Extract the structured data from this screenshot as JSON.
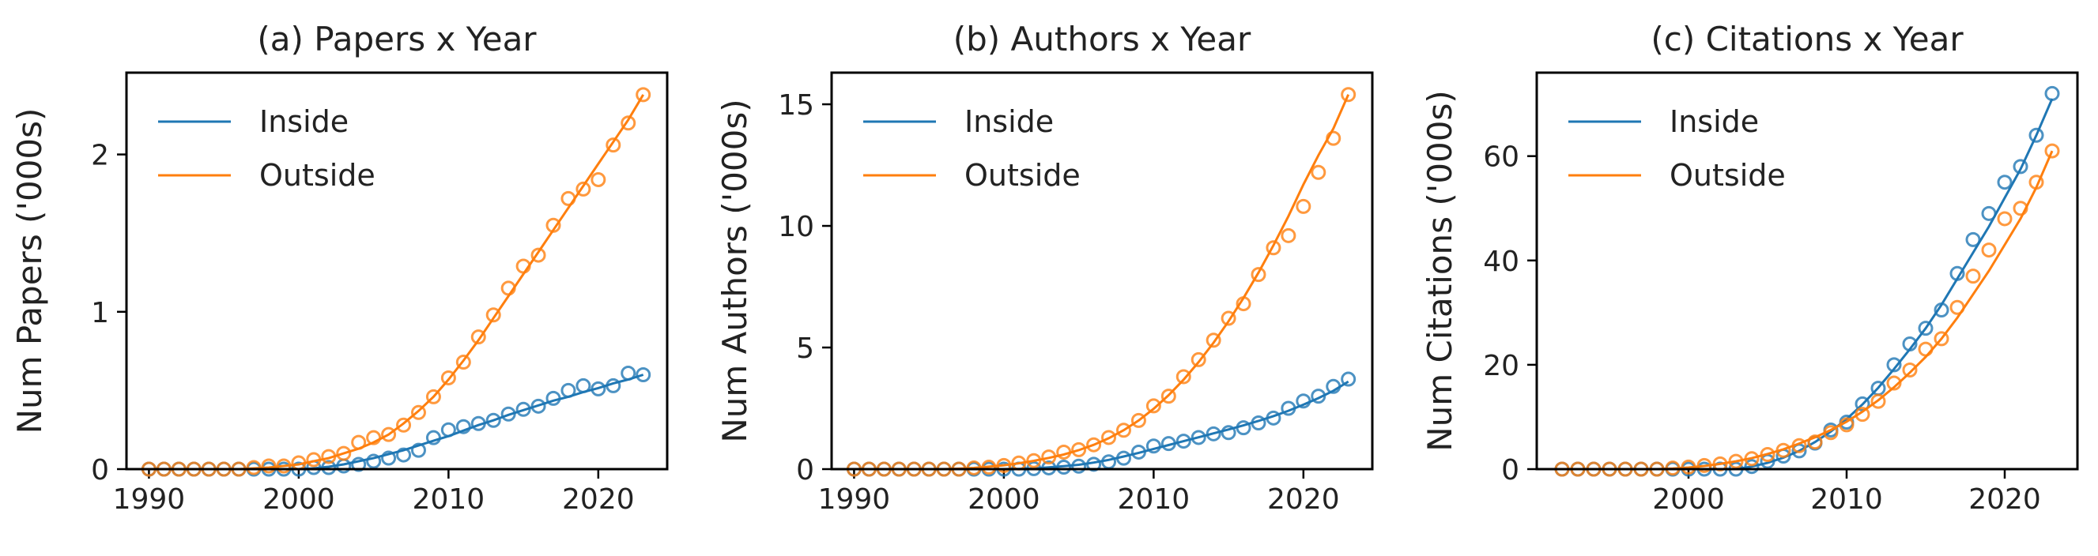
{
  "colors": {
    "inside": "#1f77b4",
    "outside": "#ff7f0e",
    "axis": "#000000"
  },
  "chart_data": [
    {
      "type": "line",
      "title": "(a) Papers x Year",
      "xlabel": "",
      "ylabel": "Num Papers ('000s)",
      "xlim": [
        1988.5,
        2024.6
      ],
      "ylim": [
        0,
        2.52
      ],
      "xticks": [
        1990,
        2000,
        2010,
        2020
      ],
      "yticks": [
        0,
        1,
        2
      ],
      "legend": "top-left",
      "grid": false,
      "x": [
        1990,
        1991,
        1992,
        1993,
        1994,
        1995,
        1996,
        1997,
        1998,
        1999,
        2000,
        2001,
        2002,
        2003,
        2004,
        2005,
        2006,
        2007,
        2008,
        2009,
        2010,
        2011,
        2012,
        2013,
        2014,
        2015,
        2016,
        2017,
        2018,
        2019,
        2020,
        2021,
        2022,
        2023
      ],
      "series": [
        {
          "name": "Inside",
          "markers": [
            0,
            0,
            0,
            0,
            0,
            0,
            0,
            0,
            0,
            0,
            0,
            0.01,
            0.01,
            0.02,
            0.03,
            0.05,
            0.07,
            0.09,
            0.12,
            0.2,
            0.25,
            0.27,
            0.29,
            0.31,
            0.35,
            0.38,
            0.4,
            0.45,
            0.5,
            0.53,
            0.51,
            0.53,
            0.61,
            0.6
          ],
          "fit": [
            0,
            0,
            0,
            0,
            0,
            0,
            0,
            0,
            0,
            0,
            0,
            0.005,
            0.015,
            0.03,
            0.05,
            0.07,
            0.095,
            0.12,
            0.15,
            0.18,
            0.21,
            0.245,
            0.28,
            0.31,
            0.345,
            0.375,
            0.405,
            0.435,
            0.46,
            0.49,
            0.515,
            0.545,
            0.57,
            0.6
          ]
        },
        {
          "name": "Outside",
          "markers": [
            0,
            0,
            0,
            0,
            0,
            0,
            0,
            0.01,
            0.02,
            0.02,
            0.04,
            0.06,
            0.08,
            0.1,
            0.17,
            0.2,
            0.22,
            0.28,
            0.36,
            0.46,
            0.58,
            0.68,
            0.84,
            0.98,
            1.15,
            1.29,
            1.36,
            1.55,
            1.72,
            1.78,
            1.84,
            2.06,
            2.2,
            2.38
          ],
          "fit": [
            0,
            0,
            0,
            0,
            0,
            0,
            0,
            0.005,
            0.01,
            0.02,
            0.03,
            0.05,
            0.07,
            0.1,
            0.13,
            0.17,
            0.22,
            0.29,
            0.37,
            0.46,
            0.57,
            0.69,
            0.82,
            0.96,
            1.1,
            1.24,
            1.38,
            1.52,
            1.66,
            1.8,
            1.94,
            2.08,
            2.22,
            2.38
          ]
        }
      ]
    },
    {
      "type": "line",
      "title": "(b) Authors x Year",
      "xlabel": "",
      "ylabel": "Num Authors ('000s)",
      "xlim": [
        1988.5,
        2024.6
      ],
      "ylim": [
        0,
        16.3
      ],
      "xticks": [
        1990,
        2000,
        2010,
        2020
      ],
      "yticks": [
        0,
        5,
        10,
        15
      ],
      "legend": "top-left",
      "grid": false,
      "x": [
        1990,
        1991,
        1992,
        1993,
        1994,
        1995,
        1996,
        1997,
        1998,
        1999,
        2000,
        2001,
        2002,
        2003,
        2004,
        2005,
        2006,
        2007,
        2008,
        2009,
        2010,
        2011,
        2012,
        2013,
        2014,
        2015,
        2016,
        2017,
        2018,
        2019,
        2020,
        2021,
        2022,
        2023
      ],
      "series": [
        {
          "name": "Inside",
          "markers": [
            0,
            0,
            0,
            0,
            0,
            0,
            0,
            0,
            0,
            0,
            0,
            0,
            0.02,
            0.05,
            0.08,
            0.12,
            0.2,
            0.3,
            0.45,
            0.7,
            0.95,
            1.05,
            1.15,
            1.3,
            1.45,
            1.5,
            1.7,
            1.9,
            2.1,
            2.5,
            2.8,
            3.0,
            3.4,
            3.7
          ],
          "fit": [
            0,
            0,
            0,
            0,
            0,
            0,
            0,
            0,
            0,
            0,
            0,
            0.01,
            0.03,
            0.07,
            0.12,
            0.18,
            0.27,
            0.38,
            0.52,
            0.67,
            0.83,
            0.99,
            1.15,
            1.31,
            1.47,
            1.63,
            1.8,
            1.98,
            2.18,
            2.4,
            2.65,
            2.92,
            3.22,
            3.6
          ]
        },
        {
          "name": "Outside",
          "markers": [
            0,
            0,
            0,
            0,
            0,
            0,
            0,
            0,
            0.05,
            0.08,
            0.15,
            0.25,
            0.35,
            0.5,
            0.7,
            0.8,
            1.0,
            1.3,
            1.6,
            2.0,
            2.6,
            3.0,
            3.8,
            4.5,
            5.3,
            6.2,
            6.8,
            8.0,
            9.1,
            9.6,
            10.8,
            12.2,
            13.6,
            15.4
          ],
          "fit": [
            0,
            0,
            0,
            0,
            0,
            0,
            0,
            0.02,
            0.05,
            0.1,
            0.16,
            0.24,
            0.34,
            0.46,
            0.6,
            0.78,
            1.0,
            1.27,
            1.6,
            2.0,
            2.48,
            3.04,
            3.68,
            4.4,
            5.2,
            6.08,
            7.04,
            8.08,
            9.2,
            10.4,
            11.7,
            12.9,
            14.0,
            15.4
          ]
        }
      ]
    },
    {
      "type": "line",
      "title": "(c) Citations x Year",
      "xlabel": "",
      "ylabel": "Num Citations ('000s)",
      "xlim": [
        1990.4,
        2024.6
      ],
      "ylim": [
        0,
        76
      ],
      "xticks": [
        2000,
        2010,
        2020
      ],
      "yticks": [
        0,
        20,
        40,
        60
      ],
      "legend": "top-left",
      "grid": false,
      "x": [
        1992,
        1993,
        1994,
        1995,
        1996,
        1997,
        1998,
        1999,
        2000,
        2001,
        2002,
        2003,
        2004,
        2005,
        2006,
        2007,
        2008,
        2009,
        2010,
        2011,
        2012,
        2013,
        2014,
        2015,
        2016,
        2017,
        2018,
        2019,
        2020,
        2021,
        2022,
        2023
      ],
      "series": [
        {
          "name": "Inside",
          "markers": [
            0,
            0,
            0,
            0,
            0,
            0,
            0,
            0,
            0,
            0,
            0,
            0,
            0.5,
            1.5,
            2.5,
            3.5,
            5.0,
            7.5,
            9.0,
            12.5,
            15.5,
            20.0,
            24.0,
            27.0,
            30.5,
            37.5,
            44.0,
            49.0,
            55.0,
            58.0,
            64.0,
            72.0
          ],
          "fit": [
            0,
            0,
            0,
            0,
            0,
            0,
            0,
            0,
            0,
            0,
            0,
            0,
            0.5,
            1.2,
            2.2,
            3.5,
            5.2,
            7.2,
            9.6,
            12.4,
            15.6,
            19.2,
            23.0,
            27.0,
            31.5,
            36.5,
            41.5,
            46.5,
            52.0,
            57.5,
            64.0,
            71.0
          ]
        },
        {
          "name": "Outside",
          "markers": [
            0,
            0,
            0,
            0,
            0,
            0,
            0,
            0.2,
            0.4,
            0.7,
            1.0,
            1.5,
            2.0,
            2.8,
            3.6,
            4.5,
            5.2,
            7.0,
            8.5,
            10.5,
            13.0,
            16.5,
            19.0,
            23.0,
            25.0,
            31.0,
            37.0,
            42.0,
            48.0,
            50.0,
            55.0,
            61.0
          ],
          "fit": [
            0,
            0,
            0,
            0,
            0,
            0,
            0,
            0.1,
            0.3,
            0.6,
            1.0,
            1.5,
            2.1,
            2.9,
            3.8,
            4.9,
            6.1,
            7.5,
            9.1,
            11.0,
            13.2,
            15.7,
            18.5,
            21.5,
            25.0,
            29.0,
            33.5,
            38.0,
            43.0,
            48.0,
            54.0,
            61.0
          ]
        }
      ]
    }
  ]
}
